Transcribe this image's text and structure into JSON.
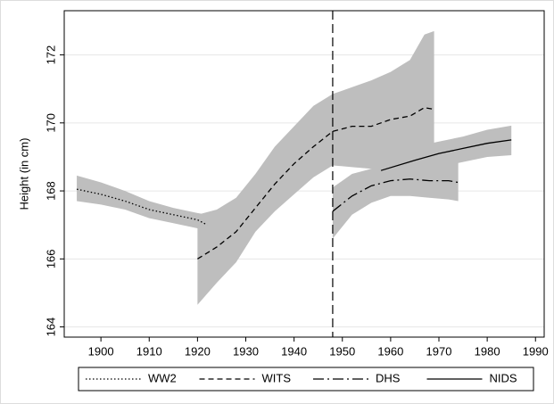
{
  "chart_data": {
    "type": "line",
    "ylabel": "Height (in cm)",
    "xlim": [
      1892.4,
      1991.8
    ],
    "ylim": [
      163.7,
      173.3
    ],
    "xticks": [
      1900,
      1910,
      1920,
      1930,
      1940,
      1950,
      1960,
      1970,
      1980,
      1990
    ],
    "yticks": [
      164,
      166,
      168,
      170,
      172
    ],
    "grid": true,
    "vline": 1948,
    "band_color": "#bebebe",
    "legend": "bottom",
    "series": [
      {
        "name": "WW2",
        "color": "#000000",
        "style": "dotted",
        "x": [
          1895,
          1900,
          1905,
          1910,
          1915,
          1920,
          1922
        ],
        "values": [
          168.05,
          167.9,
          167.7,
          167.45,
          167.3,
          167.15,
          167.0
        ],
        "upper": [
          168.45,
          168.25,
          168.0,
          167.7,
          167.5,
          167.35,
          167.3
        ],
        "lower": [
          167.7,
          167.6,
          167.45,
          167.2,
          167.05,
          166.9,
          166.85
        ]
      },
      {
        "name": "WITS",
        "color": "#000000",
        "style": "dashed",
        "x": [
          1920,
          1924,
          1928,
          1932,
          1936,
          1940,
          1944,
          1948,
          1952,
          1956,
          1960,
          1964,
          1967,
          1969
        ],
        "values": [
          166.0,
          166.35,
          166.8,
          167.5,
          168.2,
          168.8,
          169.3,
          169.75,
          169.9,
          169.9,
          170.1,
          170.2,
          170.45,
          170.4
        ],
        "upper": [
          167.3,
          167.45,
          167.8,
          168.5,
          169.3,
          169.9,
          170.5,
          170.85,
          171.05,
          171.25,
          171.5,
          171.85,
          172.6,
          172.7
        ],
        "lower": [
          164.65,
          165.3,
          165.9,
          166.8,
          167.4,
          167.9,
          168.4,
          168.75,
          168.7,
          168.65,
          168.6,
          168.8,
          169.1,
          169.4
        ]
      },
      {
        "name": "DHS",
        "color": "#000000",
        "style": "longdash-dot",
        "x": [
          1948,
          1952,
          1956,
          1960,
          1964,
          1968,
          1972,
          1974
        ],
        "values": [
          167.4,
          167.85,
          168.15,
          168.3,
          168.35,
          168.3,
          168.3,
          168.25
        ],
        "upper": [
          168.1,
          168.5,
          168.65,
          168.75,
          168.8,
          168.85,
          168.9,
          168.95
        ],
        "lower": [
          166.6,
          167.3,
          167.65,
          167.85,
          167.85,
          167.8,
          167.75,
          167.7
        ]
      },
      {
        "name": "NIDS",
        "color": "#000000",
        "style": "solid",
        "x": [
          1958,
          1965,
          1970,
          1975,
          1980,
          1985
        ],
        "values": [
          168.6,
          168.9,
          169.1,
          169.25,
          169.4,
          169.5
        ],
        "upper": [
          168.9,
          169.3,
          169.45,
          169.6,
          169.8,
          169.92
        ],
        "lower": [
          168.2,
          168.5,
          168.7,
          168.85,
          169.0,
          169.05
        ]
      }
    ]
  }
}
